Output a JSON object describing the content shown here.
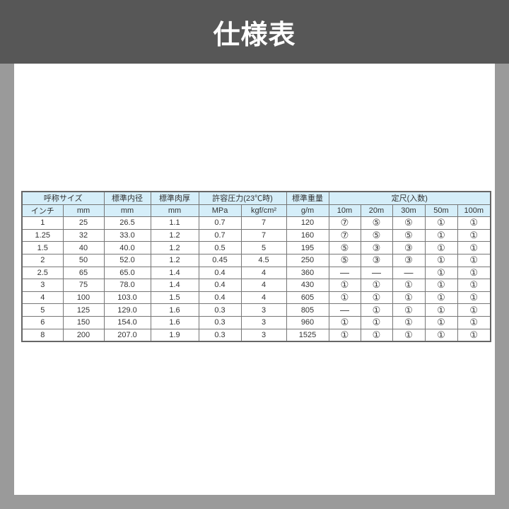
{
  "title": "仕様表",
  "table": {
    "header1": [
      "呼称サイズ",
      "標準内径",
      "標準肉厚",
      "許容圧力(23℃時)",
      "標準重量",
      "定尺(入数)"
    ],
    "header2": [
      "インチ",
      "mm",
      "mm",
      "mm",
      "MPa",
      "kgf/cm²",
      "g/m",
      "10m",
      "20m",
      "30m",
      "50m",
      "100m"
    ],
    "rows": [
      [
        "1",
        "25",
        "26.5",
        "1.1",
        "0.7",
        "7",
        "120",
        "⑦",
        "⑤",
        "⑤",
        "①",
        "①"
      ],
      [
        "1.25",
        "32",
        "33.0",
        "1.2",
        "0.7",
        "7",
        "160",
        "⑦",
        "⑤",
        "⑤",
        "①",
        "①"
      ],
      [
        "1.5",
        "40",
        "40.0",
        "1.2",
        "0.5",
        "5",
        "195",
        "⑤",
        "③",
        "③",
        "①",
        "①"
      ],
      [
        "2",
        "50",
        "52.0",
        "1.2",
        "0.45",
        "4.5",
        "250",
        "⑤",
        "③",
        "③",
        "①",
        "①"
      ],
      [
        "2.5",
        "65",
        "65.0",
        "1.4",
        "0.4",
        "4",
        "360",
        "—",
        "—",
        "—",
        "①",
        "①"
      ],
      [
        "3",
        "75",
        "78.0",
        "1.4",
        "0.4",
        "4",
        "430",
        "①",
        "①",
        "①",
        "①",
        "①"
      ],
      [
        "4",
        "100",
        "103.0",
        "1.5",
        "0.4",
        "4",
        "605",
        "①",
        "①",
        "①",
        "①",
        "①"
      ],
      [
        "5",
        "125",
        "129.0",
        "1.6",
        "0.3",
        "3",
        "805",
        "—",
        "①",
        "①",
        "①",
        "①"
      ],
      [
        "6",
        "150",
        "154.0",
        "1.6",
        "0.3",
        "3",
        "960",
        "①",
        "①",
        "①",
        "①",
        "①"
      ],
      [
        "8",
        "200",
        "207.0",
        "1.9",
        "0.3",
        "3",
        "1525",
        "①",
        "①",
        "①",
        "①",
        "①"
      ]
    ]
  },
  "colors": {
    "header_bg": "#d5eef9",
    "topbar": "#575757"
  }
}
